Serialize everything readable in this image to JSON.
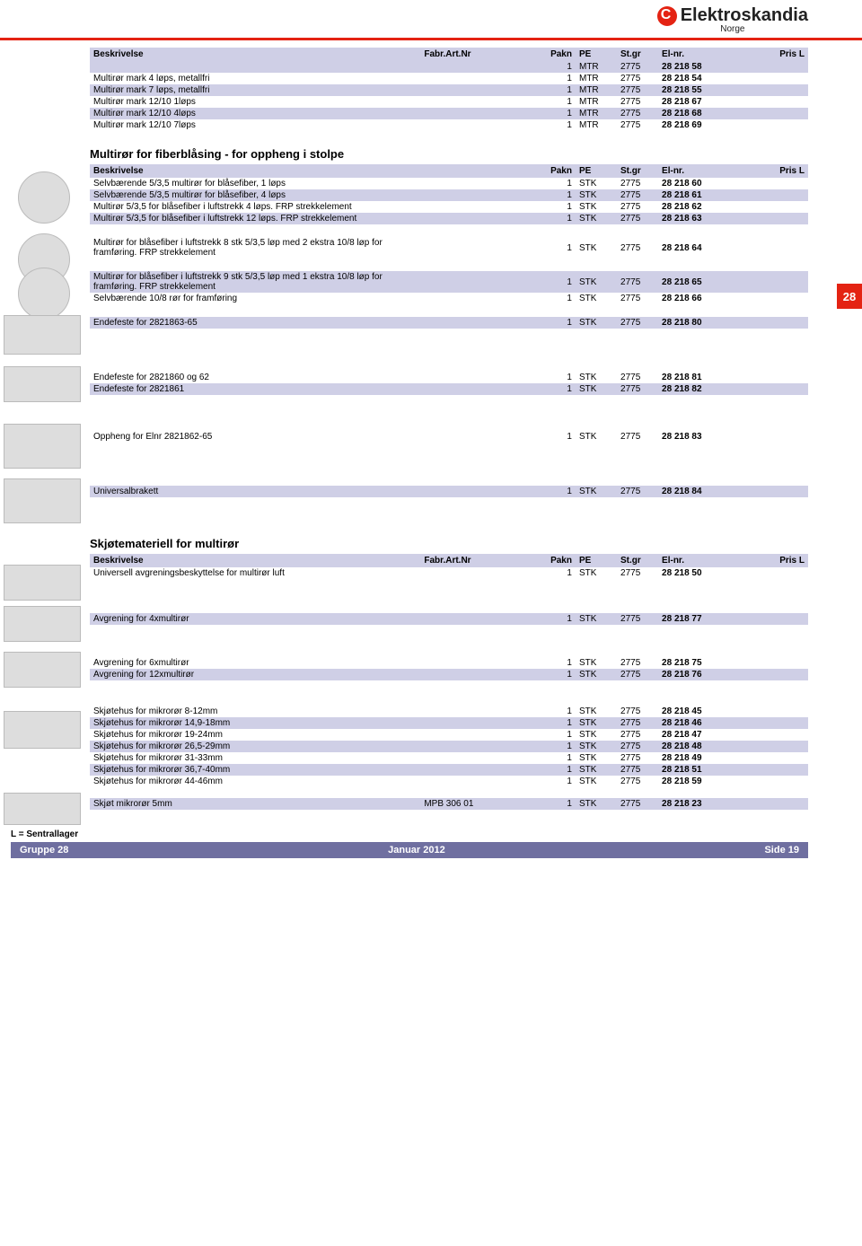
{
  "brand": {
    "name": "Elektroskandia",
    "sub": "Norge"
  },
  "columns": {
    "besk": "Beskrivelse",
    "fabr": "Fabr.Art.Nr",
    "pakn": "Pakn",
    "pe": "PE",
    "stgr": "St.gr",
    "elnr": "El-nr.",
    "prisl": "Pris L"
  },
  "table1": [
    {
      "besk": "",
      "pakn": "1",
      "pe": "MTR",
      "stgr": "2775",
      "elnr": "28 218 58",
      "shade": true
    },
    {
      "besk": "Multirør mark  4 løps, metallfri",
      "pakn": "1",
      "pe": "MTR",
      "stgr": "2775",
      "elnr": "28 218 54"
    },
    {
      "besk": "Multirør mark  7 løps, metallfri",
      "pakn": "1",
      "pe": "MTR",
      "stgr": "2775",
      "elnr": "28 218 55",
      "shade": true
    },
    {
      "besk": "Multirør mark 12/10 1løps",
      "pakn": "1",
      "pe": "MTR",
      "stgr": "2775",
      "elnr": "28 218 67"
    },
    {
      "besk": "Multirør mark 12/10 4løps",
      "pakn": "1",
      "pe": "MTR",
      "stgr": "2775",
      "elnr": "28 218 68",
      "shade": true
    },
    {
      "besk": "Multirør mark 12/10 7løps",
      "pakn": "1",
      "pe": "MTR",
      "stgr": "2775",
      "elnr": "28 218 69"
    }
  ],
  "sec2_title": "Multirør for fiberblåsing - for oppheng i stolpe",
  "table2": [
    {
      "besk": "Selvbærende 5/3,5 multirør for blåsefiber, 1 løps",
      "pakn": "1",
      "pe": "STK",
      "stgr": "2775",
      "elnr": "28 218 60"
    },
    {
      "besk": "Selvbærende 5/3,5 multirør for blåsefiber, 4 løps",
      "pakn": "1",
      "pe": "STK",
      "stgr": "2775",
      "elnr": "28 218 61",
      "shade": true
    },
    {
      "besk": "Multirør 5/3,5 for blåsefiber i luftstrekk 4 løps. FRP strekkelement",
      "pakn": "1",
      "pe": "STK",
      "stgr": "2775",
      "elnr": "28 218 62"
    },
    {
      "besk": "Multirør 5/3,5 for blåsefiber i luftstrekk 12 løps. FRP strekkelement",
      "pakn": "1",
      "pe": "STK",
      "stgr": "2775",
      "elnr": "28 218 63",
      "shade": true
    }
  ],
  "block3": {
    "besk": "Multirør for blåsefiber i luftstrekk 8 stk 5/3,5 løp med 2 ekstra 10/8 løp for framføring. FRP strekkelement",
    "pakn": "1",
    "pe": "STK",
    "stgr": "2775",
    "elnr": "28 218 64"
  },
  "table4": [
    {
      "besk": "Multirør for blåsefiber i luftstrekk 9 stk 5/3,5 løp med 1 ekstra 10/8 løp for framføring. FRP strekkelement",
      "pakn": "1",
      "pe": "STK",
      "stgr": "2775",
      "elnr": "28 218 65",
      "shade": true
    },
    {
      "besk": "Selvbærende 10/8 rør for framføring",
      "pakn": "1",
      "pe": "STK",
      "stgr": "2775",
      "elnr": "28 218 66"
    }
  ],
  "block5": {
    "besk": "Endefeste for 2821863-65",
    "pakn": "1",
    "pe": "STK",
    "stgr": "2775",
    "elnr": "28 218 80",
    "shade": true
  },
  "table6": [
    {
      "besk": "Endefeste for 2821860 og 62",
      "pakn": "1",
      "pe": "STK",
      "stgr": "2775",
      "elnr": "28 218 81"
    },
    {
      "besk": "Endefeste for 2821861",
      "pakn": "1",
      "pe": "STK",
      "stgr": "2775",
      "elnr": "28 218 82",
      "shade": true
    }
  ],
  "block7": {
    "besk": "Oppheng for Elnr 2821862-65",
    "pakn": "1",
    "pe": "STK",
    "stgr": "2775",
    "elnr": "28 218 83"
  },
  "block8": {
    "besk": "Universalbrakett",
    "pakn": "1",
    "pe": "STK",
    "stgr": "2775",
    "elnr": "28 218 84",
    "shade": true
  },
  "sec9_title": "Skjøtemateriell for multirør",
  "table9": [
    {
      "besk": "Universell avgreningsbeskyttelse for multirør luft",
      "pakn": "1",
      "pe": "STK",
      "stgr": "2775",
      "elnr": "28 218 50"
    }
  ],
  "block10": {
    "besk": "Avgrening for 4xmultirør",
    "pakn": "1",
    "pe": "STK",
    "stgr": "2775",
    "elnr": "28 218 77",
    "shade": true
  },
  "table11": [
    {
      "besk": "Avgrening for 6xmultirør",
      "pakn": "1",
      "pe": "STK",
      "stgr": "2775",
      "elnr": "28 218 75"
    },
    {
      "besk": "Avgrening for 12xmultirør",
      "pakn": "1",
      "pe": "STK",
      "stgr": "2775",
      "elnr": "28 218 76",
      "shade": true
    }
  ],
  "table12": [
    {
      "besk": "Skjøtehus for mikrorør 8-12mm",
      "pakn": "1",
      "pe": "STK",
      "stgr": "2775",
      "elnr": "28 218 45"
    },
    {
      "besk": "Skjøtehus for mikrorør 14,9-18mm",
      "pakn": "1",
      "pe": "STK",
      "stgr": "2775",
      "elnr": "28 218 46",
      "shade": true
    },
    {
      "besk": "Skjøtehus for mikrorør 19-24mm",
      "pakn": "1",
      "pe": "STK",
      "stgr": "2775",
      "elnr": "28 218 47"
    },
    {
      "besk": "Skjøtehus for mikrorør 26,5-29mm",
      "pakn": "1",
      "pe": "STK",
      "stgr": "2775",
      "elnr": "28 218 48",
      "shade": true
    },
    {
      "besk": "Skjøtehus for mikrorør 31-33mm",
      "pakn": "1",
      "pe": "STK",
      "stgr": "2775",
      "elnr": "28 218 49"
    },
    {
      "besk": "Skjøtehus for mikrorør 36,7-40mm",
      "pakn": "1",
      "pe": "STK",
      "stgr": "2775",
      "elnr": "28 218 51",
      "shade": true
    },
    {
      "besk": "Skjøtehus for mikrorør 44-46mm",
      "pakn": "1",
      "pe": "STK",
      "stgr": "2775",
      "elnr": "28 218 59"
    }
  ],
  "block13": {
    "besk": "Skjøt mikrorør  5mm",
    "fabr": "MPB 306 01",
    "pakn": "1",
    "pe": "STK",
    "stgr": "2775",
    "elnr": "28 218 23",
    "shade": true
  },
  "side_tab": "28",
  "footer": {
    "note": "L = Sentrallager",
    "left": "Gruppe 28",
    "center": "Januar 2012",
    "right": "Side   19"
  }
}
